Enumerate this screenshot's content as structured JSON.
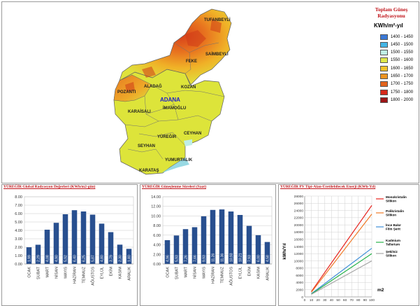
{
  "map": {
    "legend": {
      "title": "Toplam Güneş Radyasyonu",
      "unit": "KWh/m²-yıl",
      "items": [
        {
          "range": "1400 - 1450",
          "color": "#3a78d6"
        },
        {
          "range": "1450 - 1500",
          "color": "#45b6e6"
        },
        {
          "range": "1500 - 1550",
          "color": "#bfeee6"
        },
        {
          "range": "1550 - 1600",
          "color": "#dfe84b"
        },
        {
          "range": "1600 - 1650",
          "color": "#f0c22a"
        },
        {
          "range": "1650 - 1700",
          "color": "#ec9320"
        },
        {
          "range": "1700 - 1750",
          "color": "#e2641c"
        },
        {
          "range": "1750 - 1800",
          "color": "#d6281a"
        },
        {
          "range": "1800 - 2000",
          "color": "#9e1416"
        }
      ]
    },
    "city": "ADANA",
    "districts": [
      "TUFANBEYLİ",
      "SAİMBEYLİ",
      "FEKE",
      "ALADAĞ",
      "KOZAN",
      "POZANTI",
      "KARAİSALI",
      "İMAMOĞLU",
      "CEYHAN",
      "YÜREĞİR",
      "SEYHAN",
      "YUMURTALIK",
      "KARATAŞ"
    ]
  },
  "panels": {
    "global": "YÜREĞİR Global Radyasyon Değerleri (KWh/m2-gün)",
    "sunshine": "YÜREĞİR Güneşlenme Süreleri (Saat)",
    "pv": "YÜREĞİR PV Tipi-Alan-Üretilebilecek Enerji (KWh-Yıl)"
  },
  "chart_data": [
    {
      "type": "bar",
      "categories": [
        "OCAK",
        "ŞUBAT",
        "MART",
        "NİSAN",
        "MAYIS",
        "HAZİRAN",
        "TEMMUZ",
        "AĞUSTOS",
        "EYLÜL",
        "EKİM",
        "KASIM",
        "ARALIK"
      ],
      "values": [
        1.99,
        2.29,
        4.08,
        4.9,
        5.92,
        6.4,
        6.25,
        5.87,
        4.8,
        3.79,
        2.3,
        1.8
      ],
      "value_labels": [
        "1,99",
        "2,29",
        "4,08",
        "4,90",
        "5,92",
        "6,40",
        "6,25",
        "5,87",
        "4,80",
        "3,79",
        "2,30",
        "1,80"
      ],
      "yticks": [
        "0.00",
        "1.00",
        "2.00",
        "3.00",
        "4.00",
        "5.00",
        "6.00",
        "7.00",
        "8.00"
      ],
      "ylim": [
        0,
        8
      ],
      "grid": true,
      "bar_color": "#284f8f"
    },
    {
      "type": "bar",
      "categories": [
        "OCAK",
        "ŞUBAT",
        "MART",
        "NİSAN",
        "MAYIS",
        "HAZİRAN",
        "TEMMUZ",
        "AĞUSTOS",
        "EYLÜL",
        "EKİM",
        "KASIM",
        "ARALIK"
      ],
      "values": [
        4.96,
        5.93,
        7.26,
        7.66,
        9.93,
        11.26,
        11.36,
        10.93,
        10.21,
        7.93,
        6.0,
        4.58
      ],
      "value_labels": [
        "4,96",
        "5,93",
        "7,26",
        "7,66",
        "9,93",
        "11,26",
        "11,36",
        "10,93",
        "10,21",
        "7,93",
        "6,00",
        "4,58"
      ],
      "yticks": [
        "0.00",
        "2.00",
        "4.00",
        "6.00",
        "8.00",
        "10.00",
        "12.00",
        "14.00"
      ],
      "ylim": [
        0,
        14
      ],
      "grid": true,
      "bar_color": "#284f8f"
    },
    {
      "type": "line",
      "x": [
        10,
        100
      ],
      "xticks": [
        "0",
        "10",
        "20",
        "30",
        "40",
        "50",
        "60",
        "70",
        "80",
        "90",
        "100"
      ],
      "yticks": [
        "0",
        "2000",
        "4000",
        "6000",
        "8000",
        "10000",
        "12000",
        "14000",
        "16000",
        "18000",
        "20000",
        "22000",
        "24000",
        "26000",
        "28000"
      ],
      "ylim": [
        0,
        28000
      ],
      "xlim": [
        0,
        100
      ],
      "ylabel": "kWh/Yıl",
      "xlabel": "m2",
      "legend": "right",
      "series": [
        {
          "name": "Monokristalin Silikon",
          "color": "#e8231e",
          "values": [
            1500,
            25400
          ]
        },
        {
          "name": "Polikristalin Silikon",
          "color": "#f07a28",
          "values": [
            1300,
            23000
          ]
        },
        {
          "name": "İnce Bakır Film Şerit",
          "color": "#3f8fd8",
          "values": [
            900,
            13500
          ]
        },
        {
          "name": "Kadmium Tellerium",
          "color": "#27b34a",
          "values": [
            800,
            12000
          ]
        },
        {
          "name": "Şekilsiz Silikon",
          "color": "#a8a8a8",
          "values": [
            700,
            10000
          ]
        }
      ]
    }
  ]
}
